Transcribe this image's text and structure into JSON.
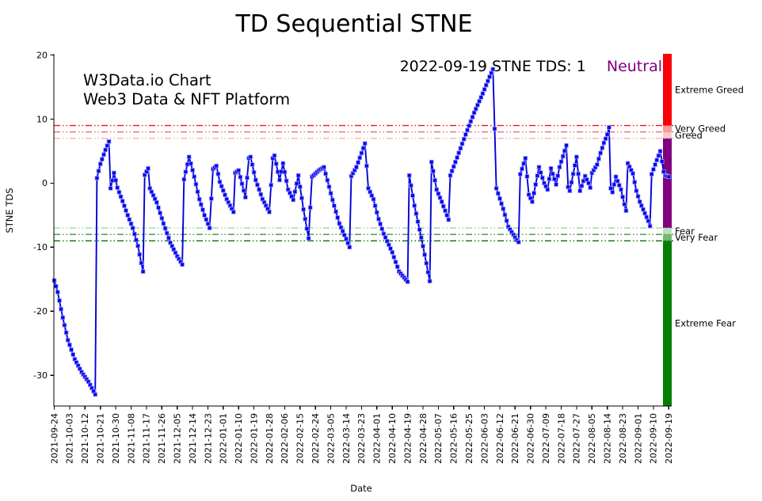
{
  "title": "TD Sequential STNE",
  "watermark": {
    "line1": "W3Data.io Chart",
    "line2": "Web3 Data & NFT Platform",
    "color": "#c5c5c5"
  },
  "annotation": {
    "text": "2022-09-19 STNE TDS: 1",
    "status": "Neutral",
    "status_color": "#800080"
  },
  "chart_data": {
    "type": "line",
    "title": "TD Sequential STNE",
    "xlabel": "Date",
    "ylabel": "STNE TDS",
    "ylim": [
      -34.8,
      20.2
    ],
    "y_ticks": [
      20,
      10,
      0,
      -10,
      -20,
      -30
    ],
    "x_tick_step_days": 9,
    "start_date": "2021-09-24",
    "end_date": "2022-09-19",
    "x_tick_labels": [
      "2021-09-24",
      "2021-10-03",
      "2021-10-12",
      "2021-10-21",
      "2021-10-30",
      "2021-11-08",
      "2021-11-17",
      "2021-11-26",
      "2021-12-05",
      "2021-12-14",
      "2021-12-23",
      "2022-01-01",
      "2022-01-10",
      "2022-01-19",
      "2022-01-28",
      "2022-02-06",
      "2022-02-15",
      "2022-02-24",
      "2022-03-05",
      "2022-03-14",
      "2022-03-23",
      "2022-04-01",
      "2022-04-10",
      "2022-04-19",
      "2022-04-28",
      "2022-05-07",
      "2022-05-16",
      "2022-05-25",
      "2022-06-03",
      "2022-06-12",
      "2022-06-21",
      "2022-06-30",
      "2022-07-09",
      "2022-07-18",
      "2022-07-27",
      "2022-08-05",
      "2022-08-14",
      "2022-08-23",
      "2022-09-01",
      "2022-09-10",
      "2022-09-19"
    ],
    "series": {
      "name": "STNE TDS",
      "line_color": "#0000dc",
      "marker": "square",
      "marker_color": "#0202f2",
      "marker_edge_color": "#9a9af0",
      "anchors": [
        [
          "2021-09-24",
          -15.2
        ],
        [
          "2021-09-26",
          -17.0
        ],
        [
          "2021-09-29",
          -21.0
        ],
        [
          "2021-10-02",
          -24.5
        ],
        [
          "2021-10-06",
          -27.5
        ],
        [
          "2021-10-10",
          -29.5
        ],
        [
          "2021-10-14",
          -31.0
        ],
        [
          "2021-10-18",
          -33.0
        ],
        [
          "2021-10-19",
          0.8
        ],
        [
          "2021-10-21",
          3.0
        ],
        [
          "2021-10-24",
          5.2
        ],
        [
          "2021-10-26",
          6.5
        ],
        [
          "2021-10-27",
          -0.8
        ],
        [
          "2021-10-29",
          1.6
        ],
        [
          "2021-10-31",
          -0.7
        ],
        [
          "2021-11-03",
          -2.8
        ],
        [
          "2021-11-06",
          -5.0
        ],
        [
          "2021-11-09",
          -7.0
        ],
        [
          "2021-11-12",
          -9.8
        ],
        [
          "2021-11-15",
          -13.8
        ],
        [
          "2021-11-16",
          1.3
        ],
        [
          "2021-11-18",
          2.3
        ],
        [
          "2021-11-19",
          -0.8
        ],
        [
          "2021-11-23",
          -3.0
        ],
        [
          "2021-11-27",
          -6.3
        ],
        [
          "2021-12-01",
          -9.3
        ],
        [
          "2021-12-05",
          -11.4
        ],
        [
          "2021-12-08",
          -12.7
        ],
        [
          "2021-12-09",
          0.6
        ],
        [
          "2021-12-12",
          4.1
        ],
        [
          "2021-12-15",
          1.0
        ],
        [
          "2021-12-18",
          -2.5
        ],
        [
          "2021-12-21",
          -5.0
        ],
        [
          "2021-12-24",
          -7.0
        ],
        [
          "2021-12-26",
          2.2
        ],
        [
          "2021-12-28",
          2.7
        ],
        [
          "2021-12-30",
          0.2
        ],
        [
          "2022-01-03",
          -2.5
        ],
        [
          "2022-01-07",
          -4.5
        ],
        [
          "2022-01-08",
          1.6
        ],
        [
          "2022-01-10",
          2.0
        ],
        [
          "2022-01-14",
          -2.2
        ],
        [
          "2022-01-16",
          3.9
        ],
        [
          "2022-01-17",
          4.1
        ],
        [
          "2022-01-20",
          0.5
        ],
        [
          "2022-01-24",
          -2.5
        ],
        [
          "2022-01-28",
          -4.5
        ],
        [
          "2022-01-30",
          3.9
        ],
        [
          "2022-01-31",
          4.3
        ],
        [
          "2022-02-03",
          0.5
        ],
        [
          "2022-02-05",
          3.1
        ],
        [
          "2022-02-08",
          -1.0
        ],
        [
          "2022-02-11",
          -2.6
        ],
        [
          "2022-02-14",
          1.2
        ],
        [
          "2022-02-17",
          -4.1
        ],
        [
          "2022-02-20",
          -8.6
        ],
        [
          "2022-02-22",
          1.0
        ],
        [
          "2022-02-26",
          2.0
        ],
        [
          "2022-03-01",
          2.5
        ],
        [
          "2022-03-06",
          -2.6
        ],
        [
          "2022-03-10",
          -6.3
        ],
        [
          "2022-03-14",
          -8.7
        ],
        [
          "2022-03-16",
          -10.0
        ],
        [
          "2022-03-17",
          1.1
        ],
        [
          "2022-03-20",
          2.5
        ],
        [
          "2022-03-23",
          4.7
        ],
        [
          "2022-03-25",
          6.2
        ],
        [
          "2022-03-27",
          -0.8
        ],
        [
          "2022-03-30",
          -2.5
        ],
        [
          "2022-04-02",
          -5.6
        ],
        [
          "2022-04-05",
          -7.9
        ],
        [
          "2022-04-10",
          -10.8
        ],
        [
          "2022-04-14",
          -13.8
        ],
        [
          "2022-04-19",
          -15.4
        ],
        [
          "2022-04-20",
          1.2
        ],
        [
          "2022-04-23",
          -3.5
        ],
        [
          "2022-04-27",
          -8.5
        ],
        [
          "2022-04-30",
          -12.5
        ],
        [
          "2022-05-02",
          -15.3
        ],
        [
          "2022-05-03",
          3.3
        ],
        [
          "2022-05-06",
          -1.0
        ],
        [
          "2022-05-09",
          -2.9
        ],
        [
          "2022-05-13",
          -5.7
        ],
        [
          "2022-05-14",
          1.2
        ],
        [
          "2022-05-18",
          4.0
        ],
        [
          "2022-05-23",
          7.6
        ],
        [
          "2022-05-28",
          11.0
        ],
        [
          "2022-06-02",
          14.0
        ],
        [
          "2022-06-06",
          16.6
        ],
        [
          "2022-06-08",
          17.8
        ],
        [
          "2022-06-10",
          -0.8
        ],
        [
          "2022-06-14",
          -4.0
        ],
        [
          "2022-06-17",
          -6.8
        ],
        [
          "2022-06-22",
          -8.9
        ],
        [
          "2022-06-23",
          -9.2
        ],
        [
          "2022-06-24",
          1.4
        ],
        [
          "2022-06-27",
          3.9
        ],
        [
          "2022-06-29",
          -1.8
        ],
        [
          "2022-07-01",
          -2.9
        ],
        [
          "2022-07-05",
          2.5
        ],
        [
          "2022-07-08",
          0.0
        ],
        [
          "2022-07-10",
          -1.0
        ],
        [
          "2022-07-12",
          2.3
        ],
        [
          "2022-07-15",
          -0.2
        ],
        [
          "2022-07-17",
          2.5
        ],
        [
          "2022-07-21",
          5.9
        ],
        [
          "2022-07-22",
          -0.6
        ],
        [
          "2022-07-23",
          -1.2
        ],
        [
          "2022-07-27",
          4.1
        ],
        [
          "2022-07-29",
          -1.2
        ],
        [
          "2022-08-01",
          1.1
        ],
        [
          "2022-08-03",
          0.0
        ],
        [
          "2022-08-04",
          -0.7
        ],
        [
          "2022-08-05",
          1.6
        ],
        [
          "2022-08-08",
          2.9
        ],
        [
          "2022-08-10",
          4.7
        ],
        [
          "2022-08-12",
          6.3
        ],
        [
          "2022-08-14",
          7.6
        ],
        [
          "2022-08-15",
          8.7
        ],
        [
          "2022-08-16",
          -0.8
        ],
        [
          "2022-08-17",
          -1.4
        ],
        [
          "2022-08-19",
          1.0
        ],
        [
          "2022-08-22",
          -1.0
        ],
        [
          "2022-08-24",
          -3.3
        ],
        [
          "2022-08-25",
          -4.3
        ],
        [
          "2022-08-26",
          3.1
        ],
        [
          "2022-08-29",
          1.5
        ],
        [
          "2022-08-31",
          -1.2
        ],
        [
          "2022-09-02",
          -2.9
        ],
        [
          "2022-09-05",
          -4.7
        ],
        [
          "2022-09-07",
          -5.9
        ],
        [
          "2022-09-08",
          -6.7
        ],
        [
          "2022-09-09",
          1.4
        ],
        [
          "2022-09-11",
          2.9
        ],
        [
          "2022-09-14",
          5.0
        ],
        [
          "2022-09-16",
          1.8
        ],
        [
          "2022-09-17",
          1.2
        ],
        [
          "2022-09-19",
          1.0
        ]
      ]
    },
    "thresholds": [
      {
        "value": 9,
        "color": "#f01414"
      },
      {
        "value": 8,
        "color": "#f56b6b"
      },
      {
        "value": 7,
        "color": "#f8b0b0"
      },
      {
        "value": -7,
        "color": "#9fd49f"
      },
      {
        "value": -8,
        "color": "#2f9e2f"
      },
      {
        "value": -9,
        "color": "#0a6e0a"
      }
    ],
    "zones": [
      {
        "label": "Extreme Greed",
        "from": 9,
        "to": 20.2,
        "bar_color": "#fb0007",
        "label_color": "#fb0007",
        "labeled": true
      },
      {
        "label": "Very Greed",
        "from": 8,
        "to": 9,
        "bar_color": "#f59c9c",
        "label_color": "#f47c7c",
        "labeled": true
      },
      {
        "label": "Greed",
        "from": 7,
        "to": 8,
        "bar_color": "#f9caca",
        "label_color": "#f7b9b9",
        "labeled": true
      },
      {
        "label": "Neutral",
        "from": -7,
        "to": 7,
        "bar_color": "#800080",
        "label_color": "#800080",
        "labeled": false
      },
      {
        "label": "Fear",
        "from": -8,
        "to": -7,
        "bar_color": "#bfdfbf",
        "label_color": "#a6d3a6",
        "labeled": true
      },
      {
        "label": "Very Fear",
        "from": -9,
        "to": -8,
        "bar_color": "#72b872",
        "label_color": "#53a553",
        "labeled": true
      },
      {
        "label": "Extreme Fear",
        "from": -34.8,
        "to": -9,
        "bar_color": "#038003",
        "label_color": "#067d06",
        "labeled": true
      }
    ]
  }
}
